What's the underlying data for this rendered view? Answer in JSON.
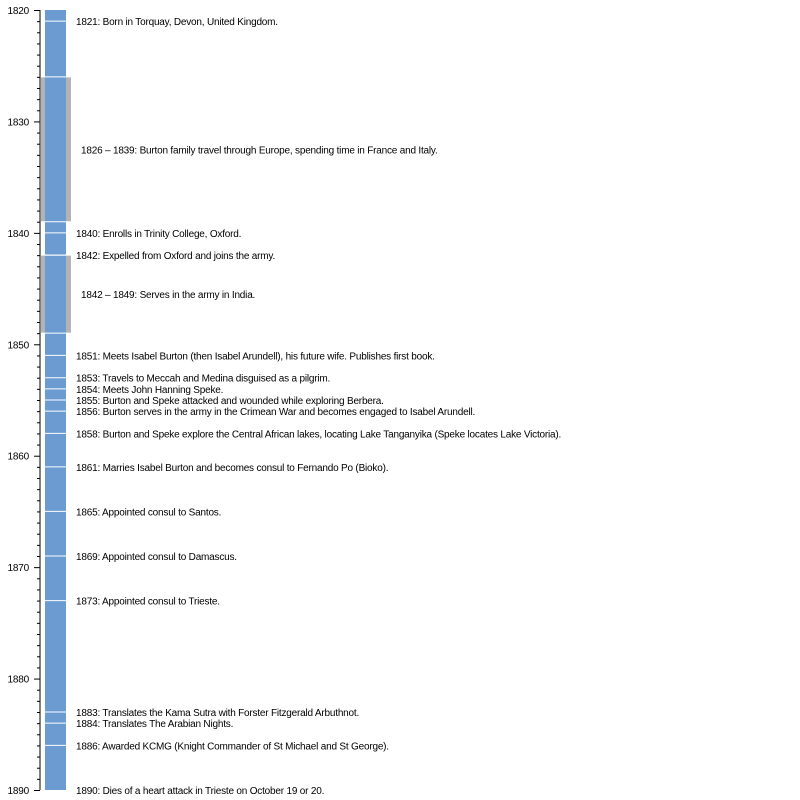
{
  "chart_data": {
    "type": "timeline",
    "ylim": [
      1820,
      1890
    ],
    "major_tick_step": 10,
    "minor_tick_step": 1,
    "tick_labels": [
      "1820",
      "1830",
      "1840",
      "1850",
      "1860",
      "1870",
      "1880",
      "1890"
    ],
    "bar_color": "#6b9bd1",
    "range_color": "#b3b3b3",
    "bar_span": [
      1820,
      1890
    ],
    "ranges": [
      {
        "start": 1826,
        "end": 1839,
        "label": "1826 – 1839: Burton family travel through Europe, spending time in France and Italy."
      },
      {
        "start": 1842,
        "end": 1849,
        "label": "1842 – 1849: Serves in the army in India."
      }
    ],
    "events": [
      {
        "year": 1821,
        "label": "1821: Born in Torquay, Devon, United Kingdom."
      },
      {
        "year": 1840,
        "label": "1840: Enrolls in Trinity College, Oxford."
      },
      {
        "year": 1842,
        "label": "1842: Expelled from Oxford and joins the army."
      },
      {
        "year": 1851,
        "label": "1851: Meets Isabel Burton (then Isabel Arundell), his future wife. Publishes first book."
      },
      {
        "year": 1853,
        "label": "1853: Travels to Meccah and Medina disguised as a pilgrim."
      },
      {
        "year": 1854,
        "label": "1854: Meets John Hanning Speke."
      },
      {
        "year": 1855,
        "label": "1855: Burton and Speke attacked and wounded while exploring Berbera."
      },
      {
        "year": 1856,
        "label": "1856: Burton serves in the army in the Crimean War and becomes engaged to Isabel Arundell."
      },
      {
        "year": 1858,
        "label": "1858: Burton and Speke explore the Central African lakes, locating Lake Tanganyika (Speke locates Lake Victoria)."
      },
      {
        "year": 1861,
        "label": "1861: Marries Isabel Burton and becomes consul to Fernando Po (Bioko)."
      },
      {
        "year": 1865,
        "label": "1865: Appointed consul to Santos."
      },
      {
        "year": 1869,
        "label": "1869: Appointed consul to Damascus."
      },
      {
        "year": 1873,
        "label": "1873: Appointed consul to Trieste."
      },
      {
        "year": 1883,
        "label": "1883: Translates the Kama Sutra with Forster Fitzgerald Arbuthnot."
      },
      {
        "year": 1884,
        "label": "1884: Translates The Arabian Nights."
      },
      {
        "year": 1886,
        "label": "1886: Awarded KCMG (Knight Commander of St Michael and St George)."
      },
      {
        "year": 1890,
        "label": "1890: Dies of a heart attack in Trieste on October 19 or 20."
      }
    ]
  }
}
